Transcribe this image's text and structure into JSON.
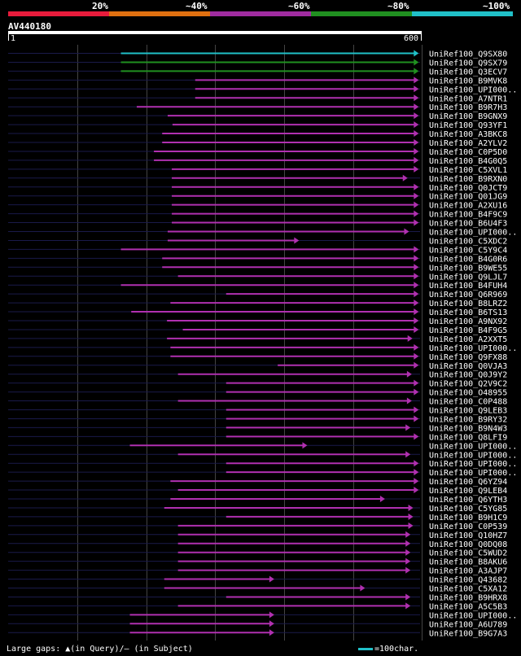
{
  "legend": {
    "labels": [
      "20%",
      "~40%",
      "~60%",
      "~80%",
      "~100%"
    ],
    "colors": [
      "#e81c3c",
      "#e07010",
      "#a02ca0",
      "#209020",
      "#20c0c8"
    ]
  },
  "query": {
    "name": "AV440180",
    "ruler_start": "1",
    "ruler_end": "600",
    "length": 600
  },
  "hits": [
    {
      "name": "UniRef100_Q9SX80",
      "s": 165,
      "e": 598,
      "c": "cyan"
    },
    {
      "name": "UniRef100_Q9SX79",
      "s": 165,
      "e": 598,
      "c": "green"
    },
    {
      "name": "UniRef100_Q3ECV7",
      "s": 165,
      "e": 598,
      "c": "green"
    },
    {
      "name": "UniRef100_B9MVK8",
      "s": 273,
      "e": 598,
      "c": "purple"
    },
    {
      "name": "UniRef100_UPI000..",
      "s": 273,
      "e": 598,
      "c": "purple"
    },
    {
      "name": "UniRef100_A7NTR1",
      "s": 273,
      "e": 598,
      "c": "purple"
    },
    {
      "name": "UniRef100_B9R7H3",
      "s": 188,
      "e": 598,
      "c": "purple"
    },
    {
      "name": "UniRef100_B9GNX9",
      "s": 233,
      "e": 598,
      "c": "purple"
    },
    {
      "name": "UniRef100_Q93YF1",
      "s": 240,
      "e": 598,
      "c": "purple"
    },
    {
      "name": "UniRef100_A3BKC8",
      "s": 225,
      "e": 598,
      "c": "purple"
    },
    {
      "name": "UniRef100_A2YLV2",
      "s": 225,
      "e": 598,
      "c": "purple"
    },
    {
      "name": "UniRef100_C0P5D0",
      "s": 213,
      "e": 598,
      "c": "purple"
    },
    {
      "name": "UniRef100_B4G0Q5",
      "s": 213,
      "e": 598,
      "c": "purple"
    },
    {
      "name": "UniRef100_C5XVL1",
      "s": 239,
      "e": 598,
      "c": "purple"
    },
    {
      "name": "UniRef100_B9RXN0",
      "s": 239,
      "e": 582,
      "c": "purple"
    },
    {
      "name": "UniRef100_Q0JCT9",
      "s": 239,
      "e": 598,
      "c": "purple"
    },
    {
      "name": "UniRef100_Q01JG9",
      "s": 239,
      "e": 598,
      "c": "purple"
    },
    {
      "name": "UniRef100_A2XU16",
      "s": 239,
      "e": 598,
      "c": "purple"
    },
    {
      "name": "UniRef100_B4F9C9",
      "s": 239,
      "e": 598,
      "c": "purple"
    },
    {
      "name": "UniRef100_B6U4F3",
      "s": 239,
      "e": 598,
      "c": "purple"
    },
    {
      "name": "UniRef100_UPI000..",
      "s": 233,
      "e": 584,
      "c": "purple"
    },
    {
      "name": "UniRef100_C5XDC2",
      "s": 233,
      "e": 424,
      "c": "purple"
    },
    {
      "name": "UniRef100_C5Y9C4",
      "s": 165,
      "e": 598,
      "c": "purple"
    },
    {
      "name": "UniRef100_B4G0R6",
      "s": 225,
      "e": 598,
      "c": "purple"
    },
    {
      "name": "UniRef100_B9WE55",
      "s": 225,
      "e": 598,
      "c": "purple"
    },
    {
      "name": "UniRef100_Q9LJL7",
      "s": 248,
      "e": 598,
      "c": "purple"
    },
    {
      "name": "UniRef100_B4FUH4",
      "s": 165,
      "e": 598,
      "c": "purple"
    },
    {
      "name": "UniRef100_Q6R969",
      "s": 318,
      "e": 598,
      "c": "purple"
    },
    {
      "name": "UniRef100_B8LRZ2",
      "s": 237,
      "e": 598,
      "c": "purple"
    },
    {
      "name": "UniRef100_B6TS13",
      "s": 180,
      "e": 598,
      "c": "purple"
    },
    {
      "name": "UniRef100_A9NX92",
      "s": 232,
      "e": 598,
      "c": "purple"
    },
    {
      "name": "UniRef100_B4F9G5",
      "s": 255,
      "e": 598,
      "c": "purple"
    },
    {
      "name": "UniRef100_A2XXT5",
      "s": 232,
      "e": 589,
      "c": "purple"
    },
    {
      "name": "UniRef100_UPI000..",
      "s": 237,
      "e": 598,
      "c": "purple"
    },
    {
      "name": "UniRef100_Q9FX88",
      "s": 237,
      "e": 598,
      "c": "purple"
    },
    {
      "name": "UniRef100_Q0VJA3",
      "s": 393,
      "e": 598,
      "c": "purple"
    },
    {
      "name": "UniRef100_Q0J9Y2",
      "s": 248,
      "e": 588,
      "c": "purple"
    },
    {
      "name": "UniRef100_Q2V9C2",
      "s": 318,
      "e": 598,
      "c": "purple"
    },
    {
      "name": "UniRef100_O48955",
      "s": 318,
      "e": 598,
      "c": "purple"
    },
    {
      "name": "UniRef100_C0P488",
      "s": 248,
      "e": 588,
      "c": "purple"
    },
    {
      "name": "UniRef100_Q9LEB3",
      "s": 318,
      "e": 598,
      "c": "purple"
    },
    {
      "name": "UniRef100_B9RY32",
      "s": 318,
      "e": 598,
      "c": "purple"
    },
    {
      "name": "UniRef100_B9N4W3",
      "s": 318,
      "e": 586,
      "c": "purple"
    },
    {
      "name": "UniRef100_Q8LFI9",
      "s": 318,
      "e": 598,
      "c": "purple"
    },
    {
      "name": "UniRef100_UPI000..",
      "s": 178,
      "e": 436,
      "c": "purple"
    },
    {
      "name": "UniRef100_UPI000..",
      "s": 248,
      "e": 586,
      "c": "purple"
    },
    {
      "name": "UniRef100_UPI000..",
      "s": 318,
      "e": 598,
      "c": "purple"
    },
    {
      "name": "UniRef100_UPI000..",
      "s": 318,
      "e": 598,
      "c": "purple"
    },
    {
      "name": "UniRef100_Q6YZ94",
      "s": 237,
      "e": 598,
      "c": "purple"
    },
    {
      "name": "UniRef100_Q9LEB4",
      "s": 248,
      "e": 598,
      "c": "purple"
    },
    {
      "name": "UniRef100_Q6YTH3",
      "s": 237,
      "e": 549,
      "c": "purple"
    },
    {
      "name": "UniRef100_C5YG85",
      "s": 228,
      "e": 590,
      "c": "purple"
    },
    {
      "name": "UniRef100_B9H1C9",
      "s": 318,
      "e": 590,
      "c": "purple"
    },
    {
      "name": "UniRef100_C0P539",
      "s": 248,
      "e": 590,
      "c": "purple"
    },
    {
      "name": "UniRef100_Q10HZ7",
      "s": 248,
      "e": 586,
      "c": "purple"
    },
    {
      "name": "UniRef100_Q0DQ08",
      "s": 248,
      "e": 586,
      "c": "purple"
    },
    {
      "name": "UniRef100_C5WUD2",
      "s": 248,
      "e": 586,
      "c": "purple"
    },
    {
      "name": "UniRef100_B8AKU6",
      "s": 248,
      "e": 586,
      "c": "purple"
    },
    {
      "name": "UniRef100_A3AJP7",
      "s": 248,
      "e": 586,
      "c": "purple"
    },
    {
      "name": "UniRef100_Q43682",
      "s": 228,
      "e": 388,
      "c": "purple"
    },
    {
      "name": "UniRef100_C5XA12",
      "s": 228,
      "e": 520,
      "c": "purple"
    },
    {
      "name": "UniRef100_B9HRX8",
      "s": 318,
      "e": 586,
      "c": "purple"
    },
    {
      "name": "UniRef100_A5C5B3",
      "s": 248,
      "e": 586,
      "c": "purple"
    },
    {
      "name": "UniRef100_UPI000..",
      "s": 178,
      "e": 388,
      "c": "purple"
    },
    {
      "name": "UniRef100_A6U789",
      "s": 178,
      "e": 388,
      "c": "purple"
    },
    {
      "name": "UniRef100_B9G7A3",
      "s": 178,
      "e": 388,
      "c": "purple"
    }
  ],
  "footer": {
    "gaps_label": "Large gaps: ▲(in Query)/– (in Subject)",
    "scale_label": "=100char."
  }
}
